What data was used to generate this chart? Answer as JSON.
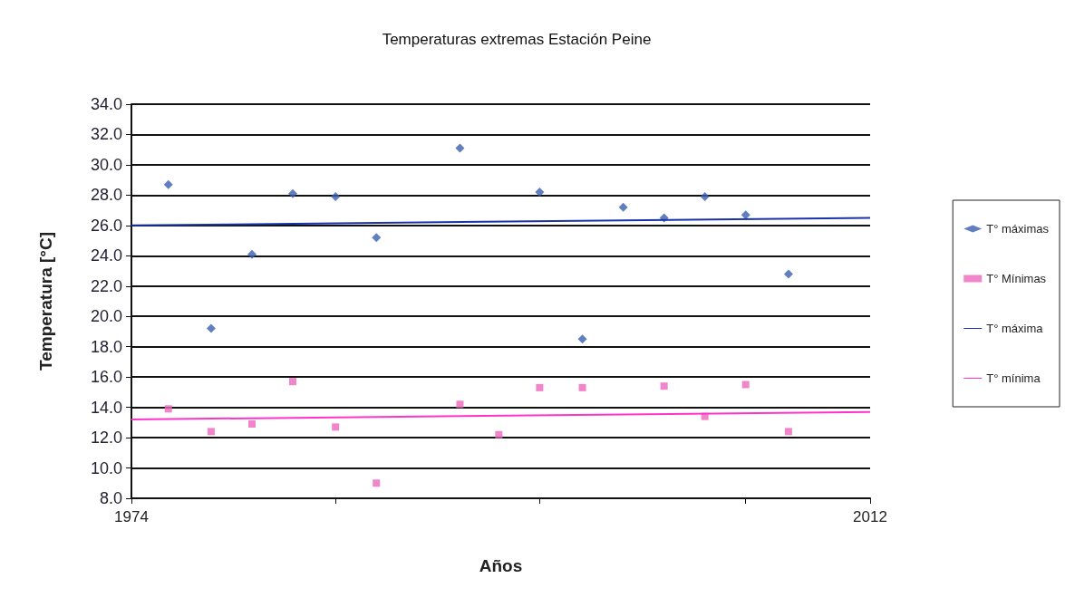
{
  "chart_data": {
    "type": "scatter",
    "title": "Temperaturas extremas Estación Peine",
    "xlabel": "Años",
    "ylabel": "Temperatura [°C]",
    "xlim": [
      1974,
      2012
    ],
    "xticks": [
      1974,
      {
        "value": 1984.5,
        "label": null
      },
      {
        "value": 1995.0,
        "label": null
      },
      {
        "value": 2005.6,
        "label": null
      },
      2012
    ],
    "ylim": [
      8,
      34
    ],
    "yticks": [
      {
        "value": 8,
        "label": "8.0"
      },
      {
        "value": 10,
        "label": "10.0"
      },
      {
        "value": 12,
        "label": "12.0"
      },
      {
        "value": 14,
        "label": "14.0"
      },
      {
        "value": 16,
        "label": "16.0"
      },
      {
        "value": 18,
        "label": "18.0"
      },
      {
        "value": 20,
        "label": "20.0"
      },
      {
        "value": 22,
        "label": "22.0"
      },
      {
        "value": 24,
        "label": "24.0"
      },
      {
        "value": 26,
        "label": "26.0"
      },
      {
        "value": 28,
        "label": "28.0"
      },
      {
        "value": 30,
        "label": "30.0"
      },
      {
        "value": 32,
        "label": "32.0"
      },
      {
        "value": 34,
        "label": "34.0"
      }
    ],
    "grid": "y",
    "legend": "right",
    "series": [
      {
        "name": "T° máximas",
        "marker": "diamond",
        "color": "#3a5fb0",
        "x": [
          1975.9,
          1978.1,
          1980.2,
          1982.3,
          1984.5,
          1986.6,
          1990.9,
          1995.0,
          1997.2,
          1999.3,
          2001.4,
          2003.5,
          2005.6,
          2007.8
        ],
        "values": [
          28.7,
          19.2,
          24.1,
          28.1,
          27.9,
          25.2,
          31.1,
          28.2,
          18.5,
          27.2,
          26.5,
          27.9,
          26.7,
          22.8
        ]
      },
      {
        "name": "T° Mínimas",
        "marker": "square",
        "color": "#ee66bb",
        "x": [
          1975.9,
          1978.1,
          1980.2,
          1982.3,
          1984.5,
          1986.6,
          1990.9,
          1992.9,
          1995.0,
          1997.2,
          2001.4,
          2003.5,
          2005.6,
          2007.8
        ],
        "values": [
          13.9,
          12.4,
          12.9,
          15.7,
          12.7,
          9.0,
          14.2,
          12.2,
          15.3,
          15.3,
          15.4,
          13.4,
          15.5,
          12.4
        ]
      },
      {
        "name": "T° máxima",
        "type": "line",
        "marker": "none",
        "color": "#1a33aa",
        "x": [
          1974,
          2012
        ],
        "values": [
          26.0,
          26.5
        ]
      },
      {
        "name": "T° mínima",
        "type": "line",
        "marker": "none",
        "color": "#ff33cc",
        "x": [
          1974,
          2012
        ],
        "values": [
          13.2,
          13.7
        ]
      }
    ]
  }
}
